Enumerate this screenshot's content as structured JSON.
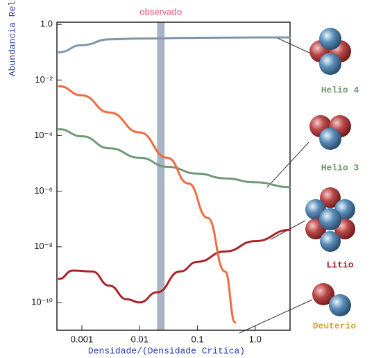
{
  "chart_data": {
    "type": "line",
    "xlabel": "Densidade/(Densidade Critica)",
    "ylabel": "Abundancia Relativa",
    "xscale": "log",
    "yscale": "log",
    "grid": false,
    "xlim": [
      0.00037,
      4
    ],
    "ylim": [
      1e-11,
      1.2
    ],
    "xticks": [
      0.001,
      0.01,
      0.1,
      {
        "value": 1,
        "label": "1.0"
      }
    ],
    "yticks": [
      {
        "value": 1,
        "label": "1.0"
      },
      {
        "value": 0.01,
        "label": "10⁻²"
      },
      {
        "value": 0.0001,
        "label": "10⁻⁴"
      },
      {
        "value": 1e-06,
        "label": "10⁻⁶"
      },
      {
        "value": 1e-08,
        "label": "10⁻⁸"
      },
      {
        "value": 1e-10,
        "label": "10⁻¹⁰"
      }
    ],
    "observed_band": {
      "label": "observado",
      "range": [
        0.02,
        0.027
      ],
      "color": "#9aa8bc"
    },
    "series": [
      {
        "name": "Helio 4",
        "color": "#7f95a8",
        "label_color": "#6a9a6a",
        "x": [
          0.0004,
          0.001,
          0.003,
          0.01,
          0.1,
          1,
          4
        ],
        "values": [
          0.1,
          0.18,
          0.29,
          0.31,
          0.33,
          0.34,
          0.34
        ]
      },
      {
        "name": "Helio 3",
        "color": "#6f9a78",
        "label_color": "#6a9a6a",
        "x": [
          0.0004,
          0.001,
          0.003,
          0.01,
          0.03,
          0.1,
          0.3,
          1,
          4
        ],
        "values": [
          0.00017,
          9.5e-05,
          3.5e-05,
          1.6e-05,
          7.6e-06,
          4.3e-06,
          2.9e-06,
          2.1e-06,
          1.4e-06
        ]
      },
      {
        "name": "Litio",
        "color": "#a8242a",
        "label_color": "#a8242a",
        "x": [
          0.0004,
          0.0007,
          0.0015,
          0.003,
          0.006,
          0.01,
          0.02,
          0.05,
          0.1,
          0.3,
          1,
          4
        ],
        "values": [
          7e-10,
          1.4e-09,
          1.3e-09,
          4e-10,
          1.3e-10,
          1e-10,
          2.3e-10,
          1.3e-09,
          2.9e-09,
          6.8e-09,
          1.6e-08,
          4.1e-08
        ]
      },
      {
        "name": "Deuterio",
        "color": "#f06a40",
        "label_color": "#d9a02a",
        "x": [
          0.0004,
          0.001,
          0.003,
          0.01,
          0.03,
          0.07,
          0.15,
          0.3,
          0.45
        ],
        "values": [
          0.006,
          0.0028,
          0.00068,
          0.00013,
          1.6e-05,
          1.9e-06,
          1.1e-07,
          1.3e-09,
          1.9e-11
        ]
      }
    ]
  }
}
